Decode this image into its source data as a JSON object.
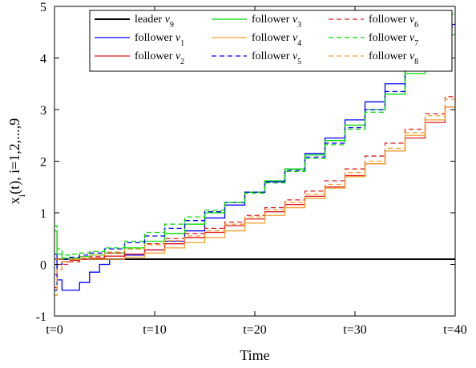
{
  "chart_data": {
    "type": "line",
    "xlabel": "Time",
    "ylabel": "x_i(t), i=1,2,...,9",
    "ylabel_main": "x",
    "ylabel_sub": "i",
    "ylabel_rest": "(t), i=1,2,...,9",
    "xlim": [
      0,
      40
    ],
    "ylim": [
      -1,
      5
    ],
    "xticks": [
      {
        "value": 0,
        "label": "t=0"
      },
      {
        "value": 10,
        "label": "t=10"
      },
      {
        "value": 20,
        "label": "t=20"
      },
      {
        "value": 30,
        "label": "t=30"
      },
      {
        "value": 40,
        "label": "t=40"
      }
    ],
    "yticks": [
      {
        "value": -1,
        "label": "-1"
      },
      {
        "value": 0,
        "label": "0"
      },
      {
        "value": 1,
        "label": "1"
      },
      {
        "value": 2,
        "label": "2"
      },
      {
        "value": 3,
        "label": "3"
      },
      {
        "value": 4,
        "label": "4"
      },
      {
        "value": 5,
        "label": "5"
      }
    ],
    "grid": false,
    "legend_position": "top-right",
    "series": [
      {
        "name": "leader",
        "sym": "v",
        "sub": "9",
        "color": "#000000",
        "dash": "solid",
        "width": 2,
        "x": [
          0,
          40
        ],
        "y": [
          0.1,
          0.1
        ]
      },
      {
        "name": "follower",
        "sym": "v",
        "sub": "1",
        "color": "#0000ff",
        "dash": "solid",
        "width": 1.3,
        "x": [
          0,
          0.5,
          1,
          2,
          3,
          4,
          5,
          6,
          8,
          10,
          12,
          14,
          16,
          18,
          20,
          22,
          24,
          26,
          28,
          30,
          32,
          34,
          36,
          38,
          40
        ],
        "y": [
          0.2,
          -0.3,
          -0.5,
          -0.5,
          -0.35,
          -0.15,
          0.0,
          0.1,
          0.18,
          0.28,
          0.45,
          0.65,
          0.9,
          1.15,
          1.4,
          1.6,
          1.85,
          2.15,
          2.45,
          2.8,
          3.15,
          3.5,
          3.85,
          4.3,
          4.65
        ]
      },
      {
        "name": "follower",
        "sym": "v",
        "sub": "2",
        "color": "#e41a1c",
        "dash": "solid",
        "width": 1.3,
        "x": [
          0,
          0.5,
          1,
          2,
          3,
          4,
          6,
          8,
          10,
          12,
          14,
          16,
          18,
          20,
          22,
          24,
          26,
          28,
          30,
          32,
          34,
          36,
          38,
          40
        ],
        "y": [
          -0.2,
          0.0,
          0.05,
          0.08,
          0.1,
          0.12,
          0.16,
          0.2,
          0.28,
          0.4,
          0.52,
          0.62,
          0.75,
          0.88,
          1.02,
          1.16,
          1.32,
          1.5,
          1.72,
          1.95,
          2.2,
          2.45,
          2.75,
          3.05
        ]
      },
      {
        "name": "follower",
        "sym": "v",
        "sub": "3",
        "color": "#00dd00",
        "dash": "solid",
        "width": 1.3,
        "x": [
          0,
          0.5,
          1,
          2,
          3,
          4,
          6,
          8,
          10,
          12,
          14,
          16,
          18,
          20,
          22,
          24,
          26,
          28,
          30,
          32,
          34,
          36,
          38,
          40
        ],
        "y": [
          0.65,
          0.2,
          0.12,
          0.12,
          0.15,
          0.18,
          0.22,
          0.32,
          0.45,
          0.6,
          0.78,
          1.0,
          1.2,
          1.4,
          1.62,
          1.85,
          2.12,
          2.4,
          2.7,
          3.0,
          3.3,
          3.7,
          4.1,
          4.45
        ]
      },
      {
        "name": "follower",
        "sym": "v",
        "sub": "4",
        "color": "#f0a030",
        "dash": "solid",
        "width": 1.3,
        "x": [
          0,
          0.5,
          1,
          2,
          3,
          4,
          6,
          8,
          10,
          12,
          14,
          16,
          18,
          20,
          22,
          24,
          26,
          28,
          30,
          32,
          34,
          36,
          38,
          40
        ],
        "y": [
          0.1,
          0.1,
          0.1,
          0.1,
          0.1,
          0.1,
          0.1,
          0.14,
          0.22,
          0.32,
          0.42,
          0.52,
          0.65,
          0.8,
          0.95,
          1.1,
          1.28,
          1.48,
          1.7,
          1.95,
          2.2,
          2.5,
          2.8,
          3.05
        ]
      },
      {
        "name": "follower",
        "sym": "v",
        "sub": "5",
        "color": "#0000ff",
        "dash": "dash",
        "width": 1.3,
        "x": [
          0,
          0.5,
          1,
          2,
          3,
          4,
          6,
          8,
          10,
          12,
          14,
          16,
          18,
          20,
          22,
          24,
          26,
          28,
          30,
          32,
          34,
          36,
          38,
          40
        ],
        "y": [
          -0.5,
          0.0,
          0.1,
          0.14,
          0.18,
          0.22,
          0.3,
          0.42,
          0.55,
          0.7,
          0.85,
          1.02,
          1.2,
          1.4,
          1.6,
          1.82,
          2.08,
          2.35,
          2.65,
          3.0,
          3.35,
          3.75,
          4.2,
          4.6
        ]
      },
      {
        "name": "follower",
        "sym": "v",
        "sub": "6",
        "color": "#e41a1c",
        "dash": "dash",
        "width": 1.3,
        "x": [
          0,
          0.5,
          1,
          2,
          3,
          4,
          6,
          8,
          10,
          12,
          14,
          16,
          18,
          20,
          22,
          24,
          26,
          28,
          30,
          32,
          34,
          36,
          38,
          40
        ],
        "y": [
          -0.45,
          -0.1,
          0.0,
          0.05,
          0.1,
          0.15,
          0.22,
          0.3,
          0.4,
          0.5,
          0.6,
          0.7,
          0.82,
          0.95,
          1.1,
          1.25,
          1.42,
          1.62,
          1.85,
          2.1,
          2.35,
          2.62,
          2.92,
          3.25
        ]
      },
      {
        "name": "follower",
        "sym": "v",
        "sub": "7",
        "color": "#00dd00",
        "dash": "dash",
        "width": 1.3,
        "x": [
          0,
          0.5,
          1,
          2,
          3,
          4,
          6,
          8,
          10,
          12,
          14,
          16,
          18,
          20,
          22,
          24,
          26,
          28,
          30,
          32,
          34,
          36,
          38,
          40
        ],
        "y": [
          0.75,
          0.3,
          0.18,
          0.2,
          0.22,
          0.25,
          0.32,
          0.45,
          0.62,
          0.78,
          0.92,
          1.05,
          1.2,
          1.38,
          1.58,
          1.8,
          2.05,
          2.32,
          2.62,
          2.95,
          3.3,
          3.75,
          4.3,
          4.85
        ]
      },
      {
        "name": "follower",
        "sym": "v",
        "sub": "8",
        "color": "#f0a030",
        "dash": "dash",
        "width": 1.3,
        "x": [
          0,
          0.5,
          1,
          2,
          3,
          4,
          6,
          8,
          10,
          12,
          14,
          16,
          18,
          20,
          22,
          24,
          26,
          28,
          30,
          32,
          34,
          36,
          38,
          40
        ],
        "y": [
          -0.6,
          -0.1,
          0.05,
          0.1,
          0.14,
          0.18,
          0.24,
          0.3,
          0.38,
          0.46,
          0.55,
          0.65,
          0.78,
          0.92,
          1.06,
          1.2,
          1.36,
          1.55,
          1.78,
          2.0,
          2.25,
          2.55,
          2.88,
          3.2
        ]
      }
    ]
  }
}
